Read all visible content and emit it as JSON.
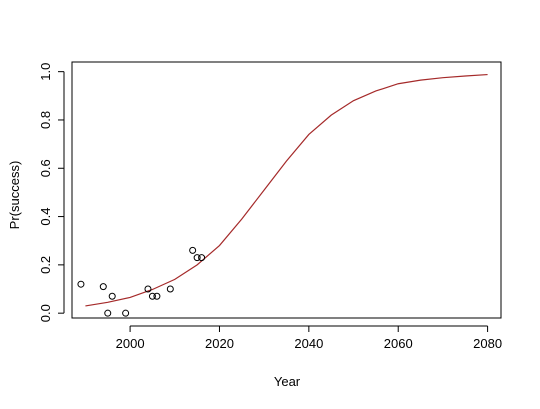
{
  "chart_data": {
    "type": "scatter",
    "title": "",
    "xlabel": "Year",
    "ylabel": "Pr(success)",
    "xlim": [
      1987,
      2083
    ],
    "ylim": [
      -0.02,
      1.04
    ],
    "grid": false,
    "x_ticks": [
      2000,
      2020,
      2040,
      2060,
      2080
    ],
    "y_ticks": [
      0.0,
      0.2,
      0.4,
      0.6,
      0.8,
      1.0
    ],
    "x_tick_labels": [
      "2000",
      "2020",
      "2040",
      "2060",
      "2080"
    ],
    "y_tick_labels": [
      "0.0",
      "0.2",
      "0.4",
      "0.6",
      "0.8",
      "1.0"
    ],
    "points": [
      {
        "x": 1989,
        "y": 0.12
      },
      {
        "x": 1994,
        "y": 0.11
      },
      {
        "x": 1995,
        "y": 0.0
      },
      {
        "x": 1996,
        "y": 0.07
      },
      {
        "x": 1999,
        "y": 0.0
      },
      {
        "x": 2004,
        "y": 0.1
      },
      {
        "x": 2005,
        "y": 0.07
      },
      {
        "x": 2006,
        "y": 0.07
      },
      {
        "x": 2009,
        "y": 0.1
      },
      {
        "x": 2014,
        "y": 0.26
      },
      {
        "x": 2015,
        "y": 0.23
      },
      {
        "x": 2016,
        "y": 0.23
      }
    ],
    "curve": {
      "color": "#a52a2a",
      "x": [
        1990,
        1995,
        2000,
        2005,
        2010,
        2015,
        2020,
        2025,
        2030,
        2035,
        2040,
        2045,
        2050,
        2055,
        2060,
        2065,
        2070,
        2075,
        2080
      ],
      "y": [
        0.03,
        0.045,
        0.065,
        0.098,
        0.14,
        0.2,
        0.28,
        0.39,
        0.51,
        0.63,
        0.74,
        0.82,
        0.88,
        0.92,
        0.95,
        0.965,
        0.975,
        0.982,
        0.988
      ]
    }
  }
}
